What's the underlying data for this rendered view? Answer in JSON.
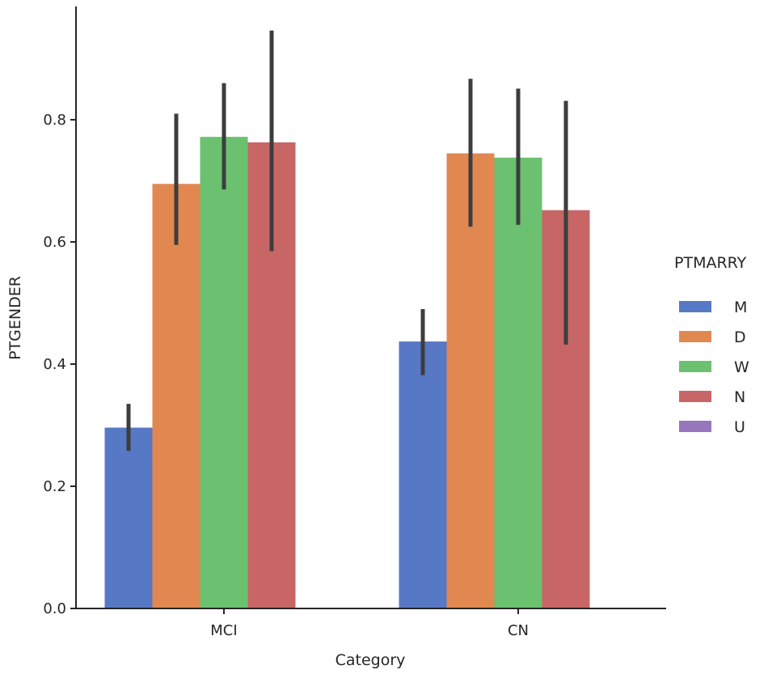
{
  "chart_data": {
    "type": "bar",
    "title": "",
    "xlabel": "Category",
    "ylabel": "PTGENDER",
    "categories": [
      "MCI",
      "CN"
    ],
    "ylim": [
      0,
      0.99
    ],
    "yticks": [
      0.0,
      0.2,
      0.4,
      0.6,
      0.8
    ],
    "ytick_labels": [
      "0.0",
      "0.2",
      "0.4",
      "0.6",
      "0.8"
    ],
    "legend": {
      "title": "PTMARRY",
      "position": "right"
    },
    "series": [
      {
        "name": "M",
        "color": "#5778c4",
        "values": [
          0.296,
          0.437
        ],
        "err_low": [
          0.258,
          0.382
        ],
        "err_high": [
          0.335,
          0.49
        ]
      },
      {
        "name": "D",
        "color": "#e18850",
        "values": [
          0.695,
          0.745
        ],
        "err_low": [
          0.595,
          0.625
        ],
        "err_high": [
          0.81,
          0.867
        ]
      },
      {
        "name": "W",
        "color": "#6bc16f",
        "values": [
          0.772,
          0.738
        ],
        "err_low": [
          0.686,
          0.628
        ],
        "err_high": [
          0.86,
          0.851
        ]
      },
      {
        "name": "N",
        "color": "#c86666",
        "values": [
          0.763,
          0.652
        ],
        "err_low": [
          0.585,
          0.432
        ],
        "err_high": [
          0.946,
          0.831
        ]
      },
      {
        "name": "U",
        "color": "#9776bd",
        "values": [
          null,
          null
        ],
        "err_low": [
          null,
          null
        ],
        "err_high": [
          null,
          null
        ]
      }
    ]
  }
}
